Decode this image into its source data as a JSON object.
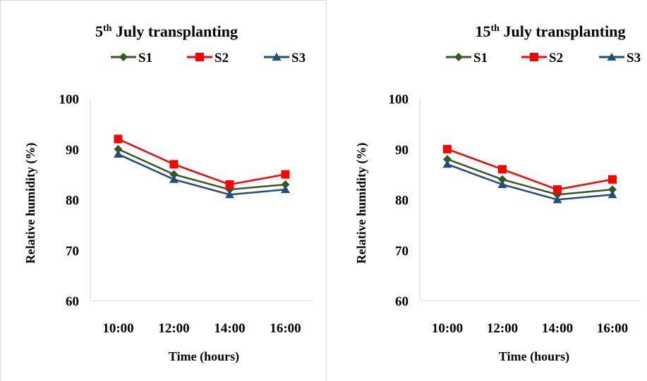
{
  "chart_data": [
    {
      "type": "line",
      "title_main": "5",
      "title_sup": "th",
      "title_rest": " July transplanting",
      "xlabel": "Time (hours)",
      "ylabel": "Relative humidity (%)",
      "categories": [
        "10:00",
        "12:00",
        "14:00",
        "16:00"
      ],
      "ylim": [
        60,
        100
      ],
      "yticks": [
        60,
        70,
        80,
        90,
        100
      ],
      "grid": false,
      "legend_position": "top",
      "series": [
        {
          "name": "S1",
          "color": "#375623",
          "marker": "diamond",
          "values": [
            90,
            85,
            82,
            83
          ]
        },
        {
          "name": "S2",
          "color": "#ff0000",
          "marker": "square",
          "values": [
            92,
            87,
            83,
            85
          ]
        },
        {
          "name": "S3",
          "color": "#1f4e79",
          "marker": "triangle",
          "values": [
            89,
            84,
            81,
            82
          ]
        }
      ]
    },
    {
      "type": "line",
      "title_main": "15",
      "title_sup": "th",
      "title_rest": " July transplanting",
      "xlabel": "Time (hours)",
      "ylabel": "Relative humidity (%)",
      "categories": [
        "10:00",
        "12:00",
        "14:00",
        "16:00"
      ],
      "ylim": [
        60,
        100
      ],
      "yticks": [
        60,
        70,
        80,
        90,
        100
      ],
      "grid": false,
      "legend_position": "top",
      "series": [
        {
          "name": "S1",
          "color": "#375623",
          "marker": "diamond",
          "values": [
            88,
            84,
            81,
            82
          ]
        },
        {
          "name": "S2",
          "color": "#ff0000",
          "marker": "square",
          "values": [
            90,
            86,
            82,
            84
          ]
        },
        {
          "name": "S3",
          "color": "#1f4e79",
          "marker": "triangle",
          "values": [
            87,
            83,
            80,
            81
          ]
        }
      ]
    }
  ]
}
